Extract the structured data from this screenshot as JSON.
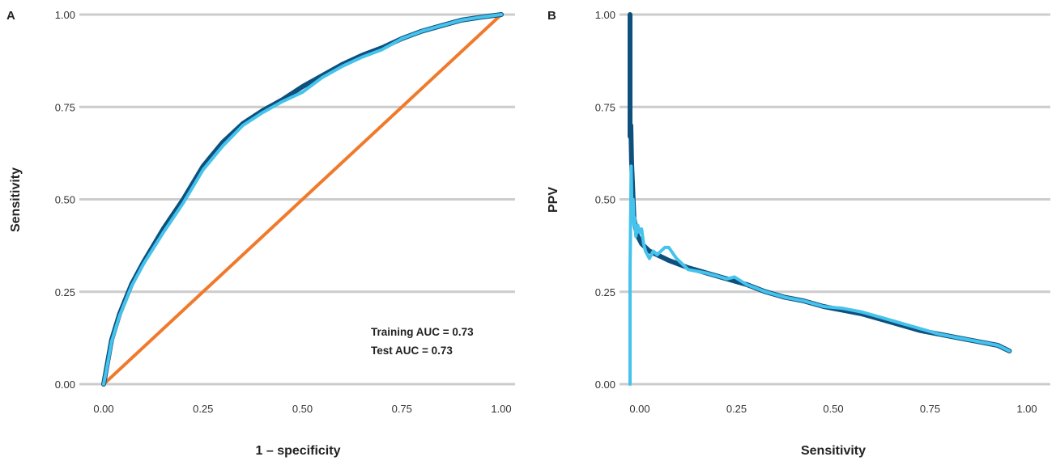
{
  "colors": {
    "training": "#0d4f7d",
    "test": "#45c3ec",
    "reference": "#f07a2c",
    "grid": "#cccccc"
  },
  "chart_data": [
    {
      "panel": "A",
      "type": "line",
      "xlabel": "1 – specificity",
      "ylabel": "Sensitivity",
      "xlim": [
        0,
        1
      ],
      "ylim": [
        0,
        1
      ],
      "xticks": [
        "0.00",
        "0.25",
        "0.50",
        "0.75",
        "1.00"
      ],
      "yticks": [
        "0.00",
        "0.25",
        "0.50",
        "0.75",
        "1.00"
      ],
      "grid": "horizontal",
      "annotations": [
        "Training AUC = 0.73",
        "Test AUC = 0.73"
      ],
      "series": [
        {
          "role": "training",
          "x": [
            0,
            0.01,
            0.02,
            0.04,
            0.07,
            0.1,
            0.15,
            0.2,
            0.25,
            0.3,
            0.35,
            0.4,
            0.45,
            0.5,
            0.55,
            0.6,
            0.65,
            0.7,
            0.75,
            0.8,
            0.85,
            0.9,
            0.95,
            1.0
          ],
          "y": [
            0,
            0.06,
            0.12,
            0.19,
            0.27,
            0.33,
            0.42,
            0.5,
            0.59,
            0.655,
            0.705,
            0.74,
            0.77,
            0.805,
            0.835,
            0.865,
            0.89,
            0.91,
            0.935,
            0.955,
            0.97,
            0.985,
            0.993,
            1.0
          ]
        },
        {
          "role": "test",
          "x": [
            0,
            0.01,
            0.02,
            0.04,
            0.07,
            0.1,
            0.15,
            0.2,
            0.25,
            0.3,
            0.35,
            0.4,
            0.45,
            0.5,
            0.55,
            0.6,
            0.65,
            0.7,
            0.75,
            0.8,
            0.85,
            0.9,
            0.95,
            1.0
          ],
          "y": [
            0,
            0.055,
            0.115,
            0.185,
            0.265,
            0.325,
            0.41,
            0.49,
            0.58,
            0.645,
            0.7,
            0.735,
            0.765,
            0.79,
            0.83,
            0.86,
            0.885,
            0.905,
            0.935,
            0.955,
            0.97,
            0.985,
            0.993,
            1.0
          ]
        },
        {
          "role": "reference",
          "x": [
            0,
            1
          ],
          "y": [
            0,
            1
          ]
        }
      ]
    },
    {
      "panel": "B",
      "type": "line",
      "xlabel": "Sensitivity",
      "ylabel": "PPV",
      "xlim": [
        0,
        1
      ],
      "ylim": [
        0,
        1
      ],
      "xticks": [
        "0.00",
        "0.25",
        "0.50",
        "0.75",
        "1.00"
      ],
      "yticks": [
        "0.00",
        "0.25",
        "0.50",
        "0.75",
        "1.00"
      ],
      "grid": "horizontal",
      "series": [
        {
          "role": "training",
          "x": [
            0,
            0,
            0.002,
            0.004,
            0.006,
            0.008,
            0.01,
            0.015,
            0.02,
            0.03,
            0.05,
            0.08,
            0.1,
            0.15,
            0.2,
            0.25,
            0.3,
            0.35,
            0.4,
            0.45,
            0.5,
            0.55,
            0.6,
            0.65,
            0.7,
            0.75,
            0.8,
            0.85,
            0.9,
            0.95,
            0.98
          ],
          "y": [
            1.0,
            0.67,
            0.7,
            0.6,
            0.55,
            0.5,
            0.45,
            0.42,
            0.4,
            0.38,
            0.36,
            0.345,
            0.335,
            0.315,
            0.3,
            0.285,
            0.27,
            0.25,
            0.235,
            0.225,
            0.21,
            0.2,
            0.19,
            0.175,
            0.16,
            0.145,
            0.135,
            0.125,
            0.115,
            0.105,
            0.09
          ]
        },
        {
          "role": "test",
          "x": [
            0,
            0,
            0.003,
            0.005,
            0.008,
            0.01,
            0.012,
            0.015,
            0.02,
            0.025,
            0.03,
            0.035,
            0.04,
            0.05,
            0.06,
            0.07,
            0.08,
            0.09,
            0.1,
            0.12,
            0.15,
            0.2,
            0.25,
            0.27,
            0.3,
            0.35,
            0.4,
            0.45,
            0.5,
            0.55,
            0.6,
            0.65,
            0.7,
            0.75,
            0.8,
            0.85,
            0.9,
            0.95,
            0.98
          ],
          "y": [
            0,
            0.3,
            0.59,
            0.46,
            0.5,
            0.43,
            0.45,
            0.4,
            0.43,
            0.41,
            0.42,
            0.38,
            0.36,
            0.34,
            0.36,
            0.35,
            0.36,
            0.37,
            0.37,
            0.34,
            0.31,
            0.3,
            0.285,
            0.29,
            0.27,
            0.25,
            0.235,
            0.225,
            0.21,
            0.205,
            0.195,
            0.18,
            0.165,
            0.15,
            0.135,
            0.125,
            0.115,
            0.105,
            0.09
          ]
        }
      ]
    }
  ]
}
